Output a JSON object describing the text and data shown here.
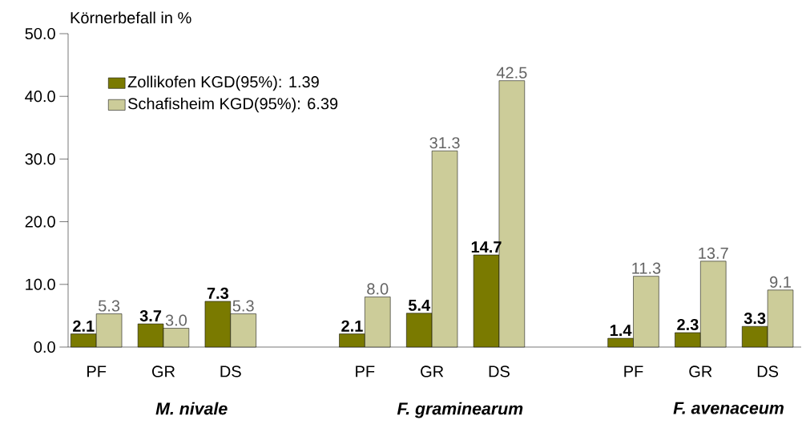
{
  "chart_data": {
    "type": "bar",
    "ylabel": "Körnerbefall in %",
    "categories": [
      "PF",
      "GR",
      "DS",
      null,
      "PF",
      "GR",
      "DS",
      null,
      "PF",
      "GR",
      "DS"
    ],
    "series": [
      {
        "name": "Zollikofen     KGD(95%): 1.39",
        "color": "#7a7a00",
        "values": [
          2.1,
          3.7,
          7.3,
          null,
          2.1,
          5.4,
          14.7,
          null,
          1.4,
          2.3,
          3.3
        ],
        "value_labels": [
          "2.1",
          "3.7",
          "7.3",
          null,
          "2.1",
          "5.4",
          "14.7",
          null,
          "1.4",
          "2.3",
          "3.3"
        ]
      },
      {
        "name": "Schafisheim  KGD(95%): 6.39",
        "color": "#cccc99",
        "values": [
          5.3,
          3.0,
          5.3,
          null,
          8.0,
          31.3,
          42.5,
          null,
          11.3,
          13.7,
          9.1
        ],
        "value_labels": [
          "5.3",
          "3.0",
          "5.3",
          null,
          "8.0",
          "31.3",
          "42.5",
          null,
          "11.3",
          "13.7",
          "9.1"
        ]
      }
    ],
    "annotations": [
      "M. nivale",
      "F. graminearum",
      "F. avenaceum"
    ],
    "ylim": [
      0,
      50
    ],
    "yticks": [
      {
        "value": 0,
        "label": "0.0"
      },
      {
        "value": 10,
        "label": "10.0"
      },
      {
        "value": 20,
        "label": "20.0"
      },
      {
        "value": 30,
        "label": "30.0"
      },
      {
        "value": 40,
        "label": "40.0"
      },
      {
        "value": 50,
        "label": "50.0"
      }
    ],
    "legend": "top left",
    "grid": false
  }
}
